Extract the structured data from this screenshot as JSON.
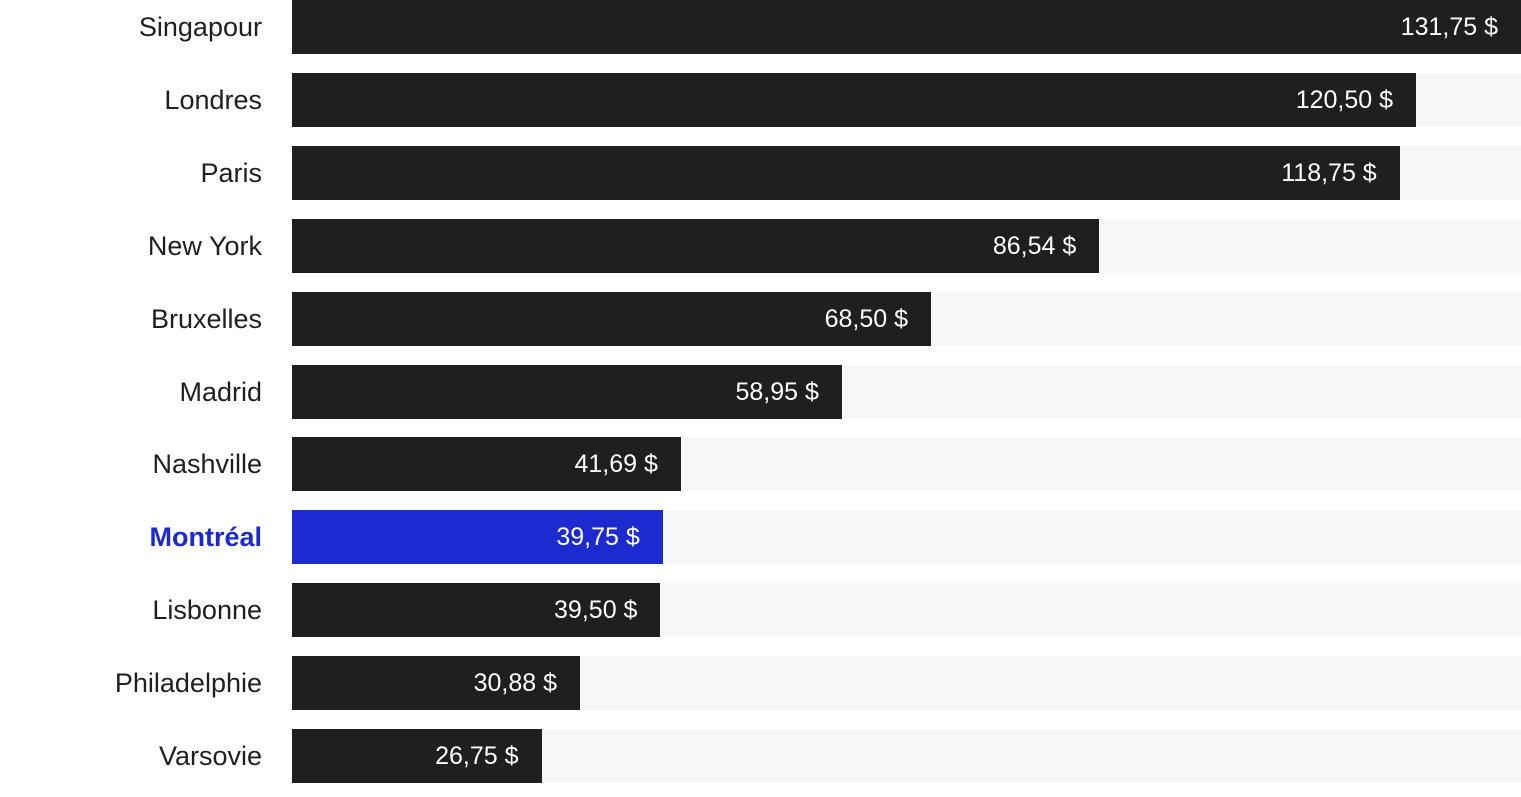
{
  "chart_data": {
    "type": "bar",
    "orientation": "horizontal",
    "categories": [
      "Singapour",
      "Londres",
      "Paris",
      "New York",
      "Bruxelles",
      "Madrid",
      "Nashville",
      "Montréal",
      "Lisbonne",
      "Philadelphie",
      "Varsovie"
    ],
    "values": [
      131.75,
      120.5,
      118.75,
      86.54,
      68.5,
      58.95,
      41.69,
      39.75,
      39.5,
      30.88,
      26.75
    ],
    "value_labels": [
      "131,75 $",
      "120,50 $",
      "118,75 $",
      "86,54 $",
      "68,50 $",
      "58,95 $",
      "41,69 $",
      "39,75 $",
      "39,50 $",
      "30,88 $",
      "26,75 $"
    ],
    "highlight": "Montréal",
    "xlim": [
      0,
      131.75
    ],
    "grid": false,
    "legend": "none",
    "colors": {
      "bar": "#1f1f22",
      "highlight": "#1c2acf",
      "track": "#f6f7f9",
      "value_text": "#ffffff",
      "label_text": "#1f1f22"
    }
  }
}
